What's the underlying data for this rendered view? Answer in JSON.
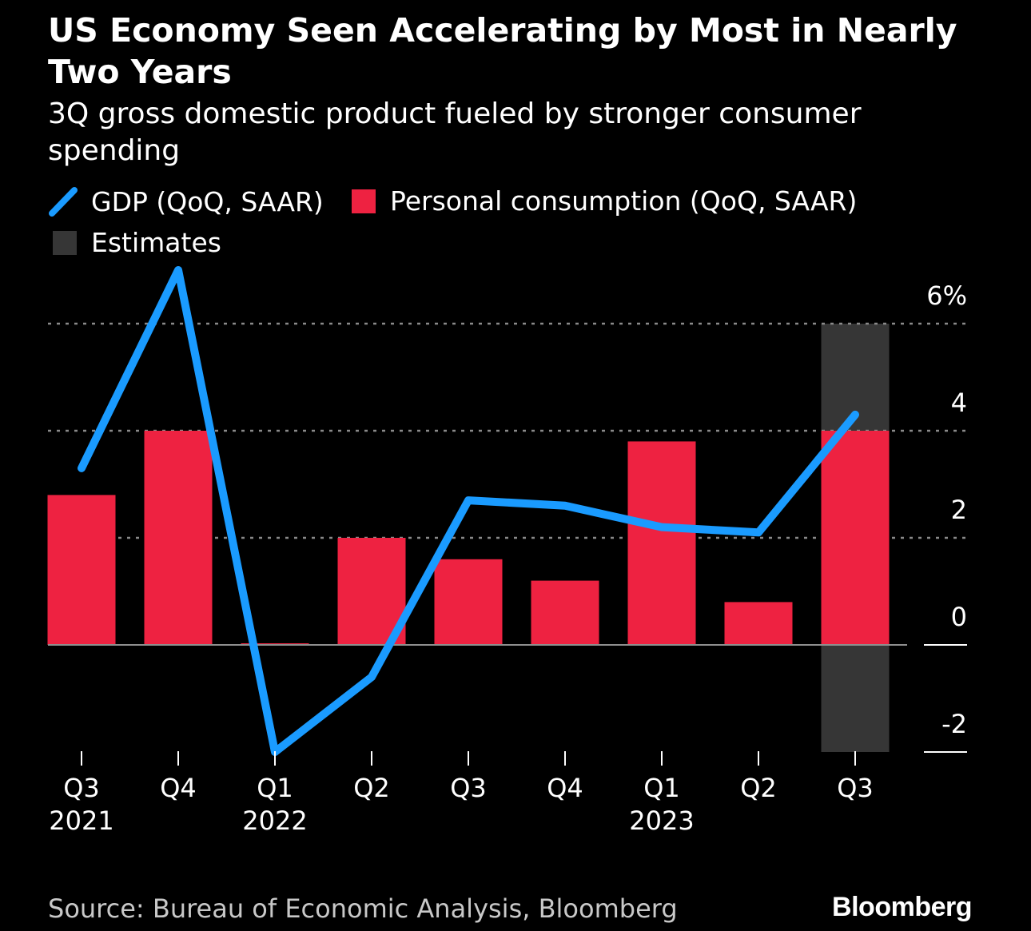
{
  "header": {
    "title": "US Economy Seen Accelerating by Most in Nearly Two Years",
    "subtitle": "3Q gross domestic product fueled by stronger consumer spending"
  },
  "legend": {
    "gdp": "GDP (QoQ, SAAR)",
    "consumption": "Personal consumption (QoQ, SAAR)",
    "estimates": "Estimates"
  },
  "footer": {
    "source": "Source: Bureau of Economic Analysis, Bloomberg",
    "brand": "Bloomberg"
  },
  "colors": {
    "gdp": "#1a9bff",
    "consumption": "#ee2241",
    "estimates": "#363636",
    "grid": "#8a8a8a",
    "background": "#000000"
  },
  "chart_data": {
    "type": "bar",
    "categories": [
      "Q3",
      "Q4",
      "Q1",
      "Q2",
      "Q3",
      "Q4",
      "Q1",
      "Q2",
      "Q3"
    ],
    "year_labels": [
      "2021",
      "",
      "2022",
      "",
      "",
      "",
      "2023",
      "",
      ""
    ],
    "series": [
      {
        "name": "Personal consumption (QoQ, SAAR)",
        "kind": "bar",
        "values": [
          2.8,
          4.0,
          0.0,
          2.0,
          1.6,
          1.2,
          3.8,
          0.8,
          4.0
        ]
      },
      {
        "name": "GDP (QoQ, SAAR)",
        "kind": "line",
        "values": [
          3.3,
          7.0,
          -2.0,
          -0.6,
          2.7,
          2.6,
          2.2,
          2.1,
          4.3
        ]
      }
    ],
    "estimates": {
      "index": 8,
      "range": [
        -2,
        6
      ]
    },
    "yticks": [
      -2,
      0,
      2,
      4,
      6
    ],
    "ytick_labels": [
      "-2",
      "0",
      "2",
      "4",
      "6%"
    ],
    "ylim": [
      -2,
      6
    ],
    "grid": true,
    "yaxis_position": "right",
    "legend_position": "top-left"
  }
}
